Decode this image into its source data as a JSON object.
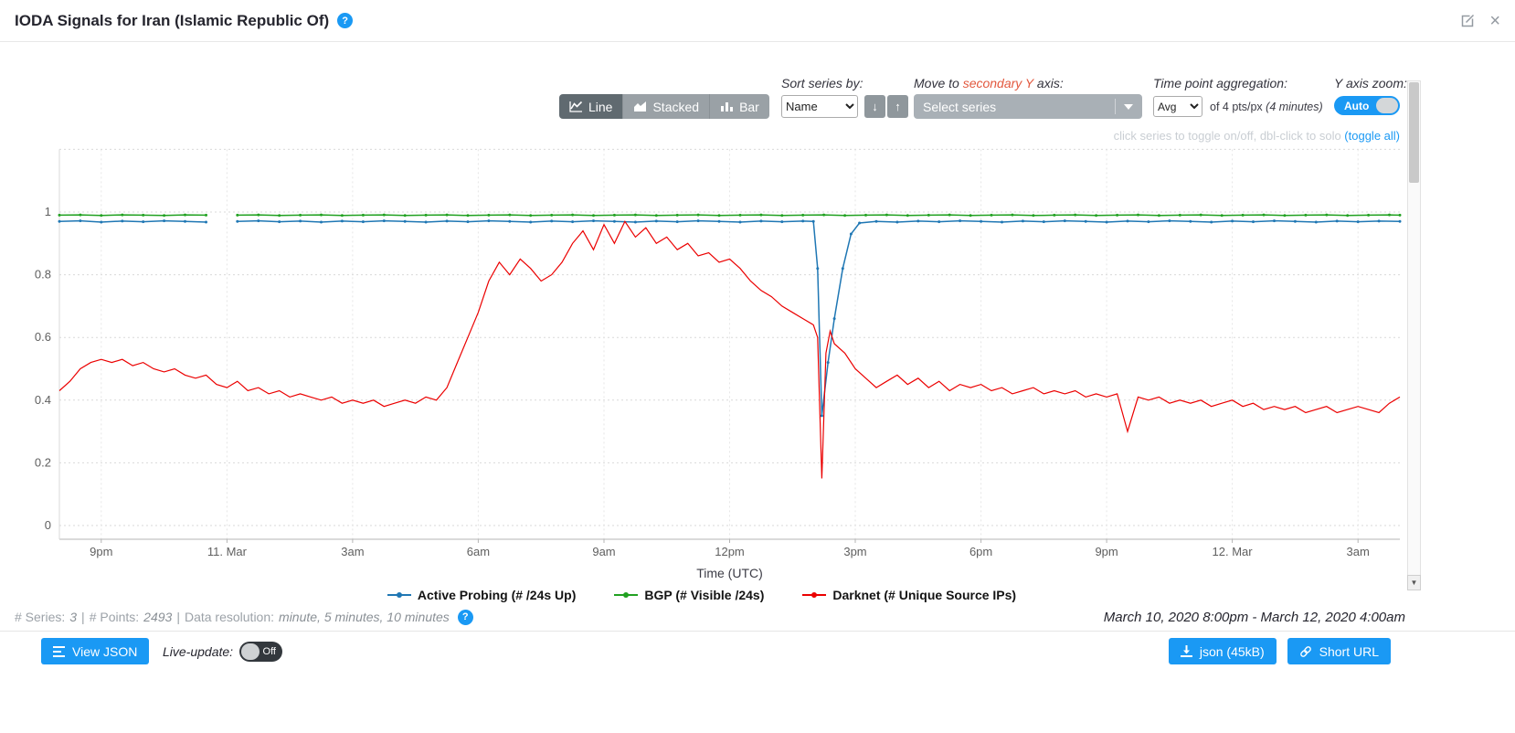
{
  "header": {
    "title": "IODA Signals for Iran (Islamic Republic Of)",
    "help_icon": "?",
    "close_icon": "×"
  },
  "controls": {
    "chart_type": [
      "Line",
      "Stacked",
      "Bar"
    ],
    "chart_type_active": "Line",
    "sort_label": "Sort series by:",
    "sort_value": "Name",
    "sort_desc_icon": "↓",
    "sort_asc_icon": "↑",
    "move_label_prefix": "Move to ",
    "move_label_highlight": "secondary Y",
    "move_label_suffix": " axis:",
    "select_series_placeholder": "Select series",
    "agg_label": "Time point aggregation:",
    "agg_value": "Avg",
    "agg_suffix": "of 4 pts/px ",
    "agg_suffix_detail": "(4 minutes)",
    "yzoom_label": "Y axis zoom:",
    "yzoom_value": "Auto",
    "hint_text": "click series to toggle on/off, dbl-click to solo ",
    "hint_link": "(toggle all)"
  },
  "chart_data": {
    "type": "line",
    "xlabel": "Time (UTC)",
    "x_unit": "hours since 2020-03-10 20:00 UTC",
    "x_range": [
      0,
      32
    ],
    "ylim": [
      0,
      1.2
    ],
    "grid": true,
    "legend_position": "bottom",
    "y_grid": [
      0,
      0.2,
      0.4,
      0.6,
      0.8,
      1,
      1.2
    ],
    "y_ticks": [
      0,
      0.2,
      0.4,
      0.6,
      0.8,
      1
    ],
    "x_ticks": [
      {
        "t": 1,
        "label": "9pm"
      },
      {
        "t": 4,
        "label": "11. Mar"
      },
      {
        "t": 7,
        "label": "3am"
      },
      {
        "t": 10,
        "label": "6am"
      },
      {
        "t": 13,
        "label": "9am"
      },
      {
        "t": 16,
        "label": "12pm"
      },
      {
        "t": 19,
        "label": "3pm"
      },
      {
        "t": 22,
        "label": "6pm"
      },
      {
        "t": 25,
        "label": "9pm"
      },
      {
        "t": 28,
        "label": "12. Mar"
      },
      {
        "t": 31,
        "label": "3am"
      }
    ],
    "series": [
      {
        "name": "Active Probing (# /24s Up)",
        "color": "#1f77b4",
        "markers": true,
        "width": 1.5,
        "points": [
          [
            0,
            0.97
          ],
          [
            0.5,
            0.972
          ],
          [
            1,
            0.968
          ],
          [
            1.5,
            0.971
          ],
          [
            2,
            0.969
          ],
          [
            2.5,
            0.972
          ],
          [
            3,
            0.97
          ],
          [
            3.5,
            0.968
          ],
          [
            3.75,
            null
          ],
          [
            4.25,
            0.97
          ],
          [
            4.75,
            0.972
          ],
          [
            5.25,
            0.969
          ],
          [
            5.75,
            0.971
          ],
          [
            6.25,
            0.968
          ],
          [
            6.75,
            0.971
          ],
          [
            7.25,
            0.969
          ],
          [
            7.75,
            0.972
          ],
          [
            8.25,
            0.97
          ],
          [
            8.75,
            0.968
          ],
          [
            9.25,
            0.971
          ],
          [
            9.75,
            0.969
          ],
          [
            10.25,
            0.972
          ],
          [
            10.75,
            0.97
          ],
          [
            11.25,
            0.968
          ],
          [
            11.75,
            0.971
          ],
          [
            12.25,
            0.969
          ],
          [
            12.75,
            0.972
          ],
          [
            13.25,
            0.97
          ],
          [
            13.75,
            0.968
          ],
          [
            14.25,
            0.971
          ],
          [
            14.75,
            0.969
          ],
          [
            15.25,
            0.972
          ],
          [
            15.75,
            0.97
          ],
          [
            16.25,
            0.968
          ],
          [
            16.75,
            0.971
          ],
          [
            17.25,
            0.969
          ],
          [
            17.75,
            0.971
          ],
          [
            18,
            0.97
          ],
          [
            18.1,
            0.82
          ],
          [
            18.2,
            0.35
          ],
          [
            18.35,
            0.52
          ],
          [
            18.5,
            0.66
          ],
          [
            18.7,
            0.82
          ],
          [
            18.9,
            0.93
          ],
          [
            19.1,
            0.965
          ],
          [
            19.5,
            0.97
          ],
          [
            20,
            0.968
          ],
          [
            20.5,
            0.971
          ],
          [
            21,
            0.969
          ],
          [
            21.5,
            0.972
          ],
          [
            22,
            0.97
          ],
          [
            22.5,
            0.968
          ],
          [
            23,
            0.971
          ],
          [
            23.5,
            0.969
          ],
          [
            24,
            0.972
          ],
          [
            24.5,
            0.97
          ],
          [
            25,
            0.968
          ],
          [
            25.5,
            0.971
          ],
          [
            26,
            0.969
          ],
          [
            26.5,
            0.972
          ],
          [
            27,
            0.97
          ],
          [
            27.5,
            0.968
          ],
          [
            28,
            0.971
          ],
          [
            28.5,
            0.969
          ],
          [
            29,
            0.972
          ],
          [
            29.5,
            0.97
          ],
          [
            30,
            0.968
          ],
          [
            30.5,
            0.971
          ],
          [
            31,
            0.969
          ],
          [
            31.5,
            0.971
          ],
          [
            32,
            0.97
          ]
        ]
      },
      {
        "name": "BGP (# Visible /24s)",
        "color": "#21a121",
        "markers": true,
        "width": 1.5,
        "points": [
          [
            0,
            0.99
          ],
          [
            0.5,
            0.991
          ],
          [
            1,
            0.989
          ],
          [
            1.5,
            0.991
          ],
          [
            2,
            0.99
          ],
          [
            2.5,
            0.989
          ],
          [
            3,
            0.991
          ],
          [
            3.5,
            0.99
          ],
          [
            3.75,
            null
          ],
          [
            4.25,
            0.99
          ],
          [
            4.75,
            0.991
          ],
          [
            5.25,
            0.989
          ],
          [
            5.75,
            0.99
          ],
          [
            6.25,
            0.991
          ],
          [
            6.75,
            0.989
          ],
          [
            7.25,
            0.99
          ],
          [
            7.75,
            0.991
          ],
          [
            8.25,
            0.989
          ],
          [
            8.75,
            0.99
          ],
          [
            9.25,
            0.991
          ],
          [
            9.75,
            0.989
          ],
          [
            10.25,
            0.99
          ],
          [
            10.75,
            0.991
          ],
          [
            11.25,
            0.989
          ],
          [
            11.75,
            0.99
          ],
          [
            12.25,
            0.991
          ],
          [
            12.75,
            0.989
          ],
          [
            13.25,
            0.99
          ],
          [
            13.75,
            0.991
          ],
          [
            14.25,
            0.989
          ],
          [
            14.75,
            0.99
          ],
          [
            15.25,
            0.991
          ],
          [
            15.75,
            0.989
          ],
          [
            16.25,
            0.99
          ],
          [
            16.75,
            0.991
          ],
          [
            17.25,
            0.989
          ],
          [
            17.75,
            0.99
          ],
          [
            18.25,
            0.991
          ],
          [
            18.75,
            0.989
          ],
          [
            19.25,
            0.99
          ],
          [
            19.75,
            0.991
          ],
          [
            20.25,
            0.989
          ],
          [
            20.75,
            0.99
          ],
          [
            21.25,
            0.991
          ],
          [
            21.75,
            0.989
          ],
          [
            22.25,
            0.99
          ],
          [
            22.75,
            0.991
          ],
          [
            23.25,
            0.989
          ],
          [
            23.75,
            0.99
          ],
          [
            24.25,
            0.991
          ],
          [
            24.75,
            0.989
          ],
          [
            25.25,
            0.99
          ],
          [
            25.75,
            0.991
          ],
          [
            26.25,
            0.989
          ],
          [
            26.75,
            0.99
          ],
          [
            27.25,
            0.991
          ],
          [
            27.75,
            0.989
          ],
          [
            28.25,
            0.99
          ],
          [
            28.75,
            0.991
          ],
          [
            29.25,
            0.989
          ],
          [
            29.75,
            0.99
          ],
          [
            30.25,
            0.991
          ],
          [
            30.75,
            0.989
          ],
          [
            31.25,
            0.99
          ],
          [
            31.75,
            0.991
          ],
          [
            32,
            0.99
          ]
        ]
      },
      {
        "name": "Darknet (# Unique Source IPs)",
        "color": "#eb0000",
        "markers": false,
        "width": 1.2,
        "points": [
          [
            0,
            0.43
          ],
          [
            0.25,
            0.46
          ],
          [
            0.5,
            0.5
          ],
          [
            0.75,
            0.52
          ],
          [
            1,
            0.53
          ],
          [
            1.25,
            0.52
          ],
          [
            1.5,
            0.53
          ],
          [
            1.75,
            0.51
          ],
          [
            2,
            0.52
          ],
          [
            2.25,
            0.5
          ],
          [
            2.5,
            0.49
          ],
          [
            2.75,
            0.5
          ],
          [
            3,
            0.48
          ],
          [
            3.25,
            0.47
          ],
          [
            3.5,
            0.48
          ],
          [
            3.75,
            0.45
          ],
          [
            4,
            0.44
          ],
          [
            4.25,
            0.46
          ],
          [
            4.5,
            0.43
          ],
          [
            4.75,
            0.44
          ],
          [
            5,
            0.42
          ],
          [
            5.25,
            0.43
          ],
          [
            5.5,
            0.41
          ],
          [
            5.75,
            0.42
          ],
          [
            6,
            0.41
          ],
          [
            6.25,
            0.4
          ],
          [
            6.5,
            0.41
          ],
          [
            6.75,
            0.39
          ],
          [
            7,
            0.4
          ],
          [
            7.25,
            0.39
          ],
          [
            7.5,
            0.4
          ],
          [
            7.75,
            0.38
          ],
          [
            8,
            0.39
          ],
          [
            8.25,
            0.4
          ],
          [
            8.5,
            0.39
          ],
          [
            8.75,
            0.41
          ],
          [
            9,
            0.4
          ],
          [
            9.25,
            0.44
          ],
          [
            9.5,
            0.52
          ],
          [
            9.75,
            0.6
          ],
          [
            10,
            0.68
          ],
          [
            10.25,
            0.78
          ],
          [
            10.5,
            0.84
          ],
          [
            10.75,
            0.8
          ],
          [
            11,
            0.85
          ],
          [
            11.25,
            0.82
          ],
          [
            11.5,
            0.78
          ],
          [
            11.75,
            0.8
          ],
          [
            12,
            0.84
          ],
          [
            12.25,
            0.9
          ],
          [
            12.5,
            0.94
          ],
          [
            12.75,
            0.88
          ],
          [
            13,
            0.96
          ],
          [
            13.25,
            0.9
          ],
          [
            13.5,
            0.97
          ],
          [
            13.75,
            0.92
          ],
          [
            14,
            0.95
          ],
          [
            14.25,
            0.9
          ],
          [
            14.5,
            0.92
          ],
          [
            14.75,
            0.88
          ],
          [
            15,
            0.9
          ],
          [
            15.25,
            0.86
          ],
          [
            15.5,
            0.87
          ],
          [
            15.75,
            0.84
          ],
          [
            16,
            0.85
          ],
          [
            16.25,
            0.82
          ],
          [
            16.5,
            0.78
          ],
          [
            16.75,
            0.75
          ],
          [
            17,
            0.73
          ],
          [
            17.25,
            0.7
          ],
          [
            17.5,
            0.68
          ],
          [
            17.75,
            0.66
          ],
          [
            18,
            0.64
          ],
          [
            18.1,
            0.6
          ],
          [
            18.2,
            0.15
          ],
          [
            18.3,
            0.55
          ],
          [
            18.4,
            0.62
          ],
          [
            18.5,
            0.58
          ],
          [
            18.75,
            0.55
          ],
          [
            19,
            0.5
          ],
          [
            19.25,
            0.47
          ],
          [
            19.5,
            0.44
          ],
          [
            19.75,
            0.46
          ],
          [
            20,
            0.48
          ],
          [
            20.25,
            0.45
          ],
          [
            20.5,
            0.47
          ],
          [
            20.75,
            0.44
          ],
          [
            21,
            0.46
          ],
          [
            21.25,
            0.43
          ],
          [
            21.5,
            0.45
          ],
          [
            21.75,
            0.44
          ],
          [
            22,
            0.45
          ],
          [
            22.25,
            0.43
          ],
          [
            22.5,
            0.44
          ],
          [
            22.75,
            0.42
          ],
          [
            23,
            0.43
          ],
          [
            23.25,
            0.44
          ],
          [
            23.5,
            0.42
          ],
          [
            23.75,
            0.43
          ],
          [
            24,
            0.42
          ],
          [
            24.25,
            0.43
          ],
          [
            24.5,
            0.41
          ],
          [
            24.75,
            0.42
          ],
          [
            25,
            0.41
          ],
          [
            25.25,
            0.42
          ],
          [
            25.5,
            0.3
          ],
          [
            25.75,
            0.41
          ],
          [
            26,
            0.4
          ],
          [
            26.25,
            0.41
          ],
          [
            26.5,
            0.39
          ],
          [
            26.75,
            0.4
          ],
          [
            27,
            0.39
          ],
          [
            27.25,
            0.4
          ],
          [
            27.5,
            0.38
          ],
          [
            27.75,
            0.39
          ],
          [
            28,
            0.4
          ],
          [
            28.25,
            0.38
          ],
          [
            28.5,
            0.39
          ],
          [
            28.75,
            0.37
          ],
          [
            29,
            0.38
          ],
          [
            29.25,
            0.37
          ],
          [
            29.5,
            0.38
          ],
          [
            29.75,
            0.36
          ],
          [
            30,
            0.37
          ],
          [
            30.25,
            0.38
          ],
          [
            30.5,
            0.36
          ],
          [
            30.75,
            0.37
          ],
          [
            31,
            0.38
          ],
          [
            31.25,
            0.37
          ],
          [
            31.5,
            0.36
          ],
          [
            31.75,
            0.39
          ],
          [
            32,
            0.41
          ]
        ]
      }
    ]
  },
  "footer": {
    "series_label": "# Series:",
    "series_value": "3",
    "points_label": "# Points:",
    "points_value": "2493",
    "resolution_label": "Data resolution:",
    "resolution_value": "minute, 5 minutes, 10 minutes",
    "separator": "|",
    "help_icon": "?",
    "date_range": "March 10, 2020 8:00pm - March 12, 2020 4:00am"
  },
  "bottom": {
    "view_json": "View JSON",
    "live_update_label": "Live-update:",
    "live_update_state": "Off",
    "json_button": "json (45kB)",
    "short_url": "Short URL"
  },
  "icons": {
    "scroll_down": "▼"
  },
  "colors": {
    "accent": "#1a99f4",
    "secondary_axis_highlight": "#e2583e"
  }
}
